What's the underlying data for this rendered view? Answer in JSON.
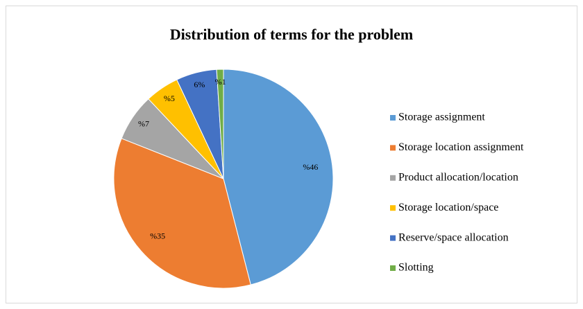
{
  "chart_data": {
    "type": "pie",
    "title": "Distribution of terms for the problem",
    "categories": [
      "Storage assignment",
      "Storage location assignment",
      "Product allocation/location",
      "Storage location/space",
      "Reserve/space allocation",
      "Slotting"
    ],
    "values": [
      46,
      35,
      7,
      5,
      6,
      1
    ],
    "value_labels": [
      "%46",
      "%35",
      "%7",
      "%5",
      "6%",
      "%1"
    ],
    "colors": [
      "#5b9bd5",
      "#ed7d31",
      "#a5a5a5",
      "#ffc000",
      "#4472c4",
      "#70ad47"
    ],
    "legend": "right"
  }
}
